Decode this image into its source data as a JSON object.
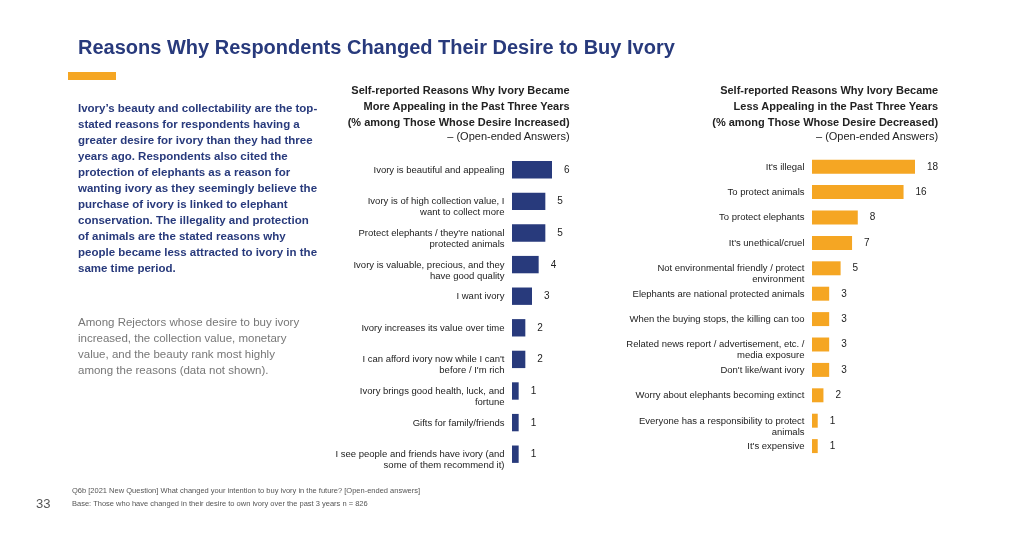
{
  "chart_data": [
    {
      "type": "bar",
      "orientation": "horizontal",
      "title": "Self-reported Reasons Why Ivory Became More Appealing in the Past Three Years (% among Those Whose Desire Increased)",
      "subtitle": "– (Open-ended Answers)",
      "categories": [
        "Ivory is beautiful and appealing",
        "Ivory is of high collection value, I want to collect more",
        "Protect elephants / they're national protected animals",
        "Ivory is valuable, precious, and they have good quality",
        "I want ivory",
        "Ivory increases its value over time",
        "I can afford ivory now while I can't before / I'm rich",
        "Ivory brings good health, luck, and fortune",
        "Gifts for family/friends",
        "I see people and friends have ivory (and some of them recommend it)"
      ],
      "values": [
        6,
        5,
        5,
        4,
        3,
        2,
        2,
        1,
        1,
        1
      ],
      "color": "#283a7c",
      "data_labels": true,
      "annotations": [
        "Reasons Why Respondents Changed Their Desire to Buy Ivory",
        "Ivory’s beauty and collectability are the top-stated reasons for respondents having a greater desire for ivory than they had three years ago. Respondents also cited the protection of elephants as a reason for wanting ivory as they seemingly believe the purchase of ivory is linked to elephant conservation. The illegality and protection of animals are the stated reasons why people became less attracted to ivory in the same time period.",
        "Among Rejectors whose desire to buy ivory increased, the collection value, monetary value, and the beauty rank most highly among the reasons (data not shown).",
        "33",
        "Q6b [2021 New Question] What changed your intention to buy ivory in the future? [Open-ended answers]",
        "Base: Those who have changed in their desire to own ivory over the past 3 years n = 826"
      ]
    },
    {
      "type": "bar",
      "orientation": "horizontal",
      "title": "Self-reported Reasons Why Ivory Became Less Appealing in the Past Three Years (% among Those Whose Desire Decreased)",
      "subtitle": "– (Open-ended Answers)",
      "categories": [
        "It's illegal",
        "To protect animals",
        "To protect elephants",
        "It's unethical/cruel",
        "Not environmental friendly / protect environment",
        "Elephants are national protected animals",
        "When the buying stops, the killing can too",
        "Related news report / advertisement, etc. / media exposure",
        "Don't like/want ivory",
        "Worry about elephants becoming extinct",
        "Everyone has a responsibility to protect animals",
        "It's expensive"
      ],
      "values": [
        18,
        16,
        8,
        7,
        5,
        3,
        3,
        3,
        3,
        2,
        1,
        1
      ],
      "color": "#f5a623",
      "data_labels": true
    }
  ]
}
